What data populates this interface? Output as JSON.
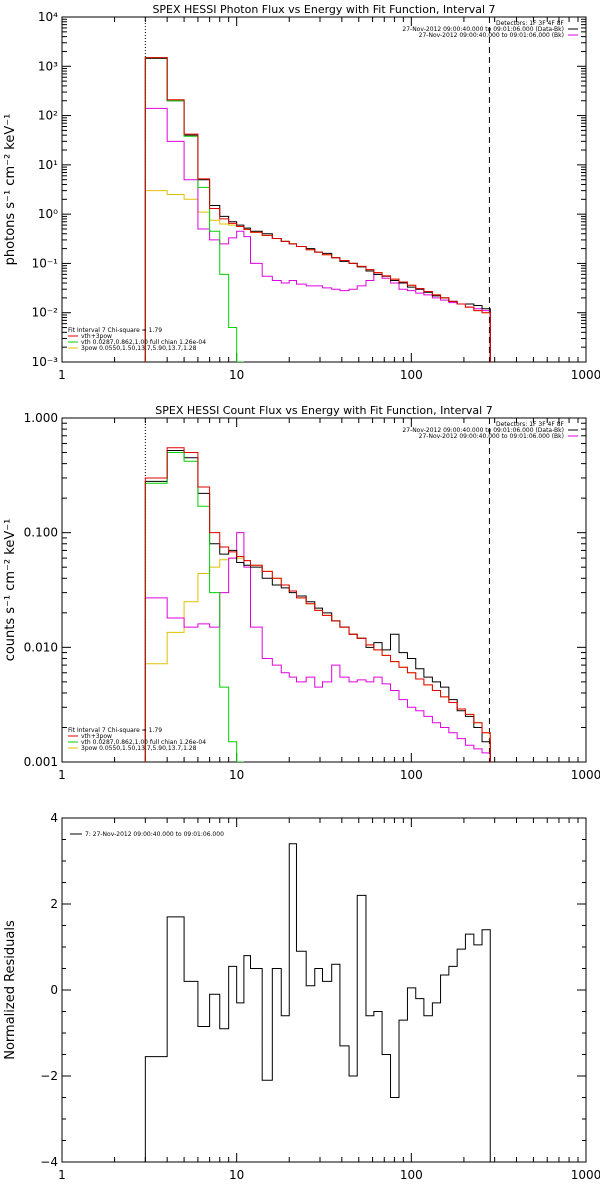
{
  "colors": {
    "black": "#000000",
    "red": "#e00000",
    "green": "#00d000",
    "magenta": "#e000e0",
    "orange": "#e0c000"
  },
  "chart_data": [
    {
      "type": "line",
      "title": "SPEX HESSI Photon Flux vs Energy with Fit Function, Interval 7",
      "xlabel": "",
      "ylabel": "photons s⁻¹ cm⁻² keV⁻¹",
      "xscale": "log",
      "yscale": "log",
      "xlim": [
        1,
        1000
      ],
      "ylim": [
        0.001,
        10000
      ],
      "x_ticks": [
        1,
        10,
        100,
        1000
      ],
      "x_tick_labels": [
        "1",
        "10",
        "100",
        "1000"
      ],
      "y_ticks": [
        0.001,
        0.01,
        0.1,
        1,
        10,
        100,
        1000,
        10000
      ],
      "y_tick_labels": [
        "10⁻³",
        "10⁻²",
        "10⁻¹",
        "10⁰",
        "10¹",
        "10²",
        "10³",
        "10⁴"
      ],
      "vlines": [
        {
          "x": 3,
          "style": "dotted"
        },
        {
          "x": 280,
          "style": "dashed"
        }
      ],
      "legend_top_right": [
        {
          "text": "Detectors: 1F 3F 4F 8F",
          "color": "#000000"
        },
        {
          "text": "27-Nov-2012 09:00:40.000 to 09:01:06.000 (Data-Bk)",
          "color": "#000000"
        },
        {
          "text": "27-Nov-2012 09:00:40.000 to 09:01:06.000 (Bk)",
          "color": "#e000e0"
        }
      ],
      "legend_bottom_left": [
        {
          "text": "Fit Interval  7    Chi-square = 1.79",
          "color": "#000000"
        },
        {
          "text": "vth+3pow",
          "color": "#e00000"
        },
        {
          "text": "vth 0.0287,0.862,1.00  full chian 1.26e-04",
          "color": "#00d000"
        },
        {
          "text": "3pow 0.0550,1.50,13.7,5.90,13.7,1.28",
          "color": "#e0c000"
        }
      ],
      "edges": [
        3,
        4,
        5,
        6,
        7,
        8,
        9,
        10,
        11,
        12,
        14,
        16,
        18,
        20,
        22,
        25,
        28,
        31,
        35,
        39,
        44,
        49,
        55,
        61,
        68,
        76,
        85,
        95,
        106,
        118,
        132,
        147,
        164,
        183,
        204,
        228,
        254,
        283
      ],
      "series": [
        {
          "name": "Data-Bk",
          "color": "#000000",
          "values": [
            1450,
            200,
            40,
            5,
            1.5,
            0.9,
            0.7,
            0.6,
            0.52,
            0.45,
            0.4,
            0.32,
            0.28,
            0.25,
            0.22,
            0.2,
            0.17,
            0.16,
            0.13,
            0.11,
            0.1,
            0.085,
            0.07,
            0.06,
            0.055,
            0.045,
            0.04,
            0.033,
            0.03,
            0.026,
            0.022,
            0.02,
            0.017,
            0.015,
            0.015,
            0.014,
            0.012
          ]
        },
        {
          "name": "Bk",
          "color": "#e000e0",
          "values": [
            140,
            30,
            5,
            0.5,
            0.3,
            0.25,
            0.33,
            0.45,
            0.35,
            0.1,
            0.055,
            0.045,
            0.04,
            0.045,
            0.038,
            0.035,
            0.035,
            0.032,
            0.03,
            0.028,
            0.03,
            0.035,
            0.045,
            0.06,
            0.05,
            0.04,
            0.03,
            0.028,
            0.025,
            0.023,
            0.02,
            0.018,
            0.016,
            0.015,
            0.013,
            0.012,
            0.011
          ]
        },
        {
          "name": "vth+3pow",
          "color": "#e00000",
          "values": [
            1500,
            210,
            42,
            5.2,
            1.3,
            0.8,
            0.65,
            0.56,
            0.49,
            0.43,
            0.37,
            0.32,
            0.28,
            0.25,
            0.22,
            0.19,
            0.17,
            0.15,
            0.13,
            0.115,
            0.1,
            0.087,
            0.075,
            0.065,
            0.056,
            0.048,
            0.042,
            0.036,
            0.031,
            0.027,
            0.023,
            0.02,
            0.017,
            0.015,
            0.013,
            0.011,
            0.01
          ]
        },
        {
          "name": "vth",
          "color": "#00d000",
          "values": [
            1500,
            200,
            38,
            3.5,
            0.45,
            0.06,
            0.005,
            0.0006
          ]
        },
        {
          "name": "3pow",
          "color": "#e0c000",
          "values": [
            3,
            2.5,
            2,
            1.1,
            0.75,
            0.63,
            0.6,
            0.56,
            0.49,
            0.43,
            0.37,
            0.32,
            0.28,
            0.25,
            0.22,
            0.19,
            0.17,
            0.15,
            0.13,
            0.115,
            0.1,
            0.087,
            0.075,
            0.065,
            0.056,
            0.048,
            0.042,
            0.036,
            0.031,
            0.027,
            0.023,
            0.02,
            0.017,
            0.015,
            0.013,
            0.011,
            0.01
          ]
        }
      ]
    },
    {
      "type": "line",
      "title": "SPEX HESSI Count Flux vs Energy with Fit Function, Interval 7",
      "xlabel": "",
      "ylabel": "counts s⁻¹ cm⁻² keV⁻¹",
      "xscale": "log",
      "yscale": "log",
      "xlim": [
        1,
        1000
      ],
      "ylim": [
        0.001,
        1
      ],
      "x_ticks": [
        1,
        10,
        100,
        1000
      ],
      "x_tick_labels": [
        "1",
        "10",
        "100",
        "1000"
      ],
      "y_ticks": [
        0.001,
        0.01,
        0.1,
        1
      ],
      "y_tick_labels": [
        "0.001",
        "0.010",
        "0.100",
        "1.000"
      ],
      "vlines": [
        {
          "x": 3,
          "style": "dotted"
        },
        {
          "x": 280,
          "style": "dashed"
        }
      ],
      "legend_top_right": [
        {
          "text": "Detectors: 1F 3F 4F 8F",
          "color": "#000000"
        },
        {
          "text": "27-Nov-2012 09:00:40.000 to 09:01:06.000 (Data-Bk)",
          "color": "#000000"
        },
        {
          "text": "27-Nov-2012 09:00:40.000 to 09:01:06.000 (Bk)",
          "color": "#e000e0"
        }
      ],
      "legend_bottom_left": [
        {
          "text": "Fit Interval  7    Chi-square = 1.79",
          "color": "#000000"
        },
        {
          "text": "vth+3pow",
          "color": "#e00000"
        },
        {
          "text": "vth 0.0287,0.862,1.00  full chian 1.26e-04",
          "color": "#00d000"
        },
        {
          "text": "3pow 0.0550,1.50,13.7,5.90,13.7,1.28",
          "color": "#e0c000"
        }
      ],
      "edges": [
        3,
        4,
        5,
        6,
        7,
        8,
        9,
        10,
        11,
        12,
        14,
        16,
        18,
        20,
        22,
        25,
        28,
        31,
        35,
        39,
        44,
        49,
        55,
        61,
        68,
        76,
        85,
        95,
        106,
        118,
        132,
        147,
        164,
        183,
        204,
        228,
        254,
        283
      ],
      "series": [
        {
          "name": "Data-Bk",
          "color": "#000000",
          "values": [
            0.28,
            0.52,
            0.45,
            0.22,
            0.08,
            0.065,
            0.07,
            0.055,
            0.052,
            0.05,
            0.04,
            0.035,
            0.033,
            0.03,
            0.028,
            0.025,
            0.022,
            0.02,
            0.017,
            0.015,
            0.013,
            0.012,
            0.01,
            0.011,
            0.0095,
            0.013,
            0.009,
            0.008,
            0.0065,
            0.0055,
            0.005,
            0.0045,
            0.0035,
            0.0028,
            0.0025,
            0.002,
            0.0015
          ]
        },
        {
          "name": "Bk",
          "color": "#e000e0",
          "values": [
            0.027,
            0.018,
            0.015,
            0.016,
            0.015,
            0.03,
            0.06,
            0.1,
            0.05,
            0.015,
            0.008,
            0.007,
            0.006,
            0.0055,
            0.005,
            0.0055,
            0.0045,
            0.005,
            0.007,
            0.0055,
            0.005,
            0.0052,
            0.005,
            0.0055,
            0.0048,
            0.0042,
            0.0035,
            0.003,
            0.0028,
            0.0025,
            0.0022,
            0.002,
            0.0018,
            0.0016,
            0.0014,
            0.0013,
            0.0012
          ]
        },
        {
          "name": "vth+3pow",
          "color": "#e00000",
          "values": [
            0.3,
            0.55,
            0.5,
            0.25,
            0.1,
            0.075,
            0.068,
            0.062,
            0.057,
            0.052,
            0.046,
            0.04,
            0.035,
            0.031,
            0.027,
            0.024,
            0.021,
            0.019,
            0.017,
            0.015,
            0.013,
            0.012,
            0.0105,
            0.0095,
            0.0085,
            0.0075,
            0.0067,
            0.006,
            0.0053,
            0.0047,
            0.0042,
            0.0037,
            0.0033,
            0.0029,
            0.0026,
            0.0022,
            0.0018
          ]
        },
        {
          "name": "vth",
          "color": "#00d000",
          "values": [
            0.27,
            0.5,
            0.42,
            0.17,
            0.03,
            0.0045,
            0.0015,
            0.0006
          ]
        },
        {
          "name": "3pow",
          "color": "#e0c000",
          "values": [
            0.0072,
            0.0135,
            0.025,
            0.044,
            0.05,
            0.058,
            0.06,
            0.06,
            0.057,
            0.052,
            0.046,
            0.04,
            0.035,
            0.031,
            0.027,
            0.024,
            0.021,
            0.019,
            0.017,
            0.015,
            0.013,
            0.012,
            0.0105,
            0.0095,
            0.0085,
            0.0075,
            0.0067,
            0.006,
            0.0053,
            0.0047,
            0.0042,
            0.0037,
            0.0033,
            0.0029,
            0.0026,
            0.0022,
            0.0018
          ]
        }
      ]
    },
    {
      "type": "line",
      "title": "",
      "xlabel": "",
      "ylabel": "Normalized Residuals",
      "xscale": "log",
      "yscale": "linear",
      "xlim": [
        1,
        1000
      ],
      "ylim": [
        -4,
        4
      ],
      "x_ticks": [
        1,
        10,
        100,
        1000
      ],
      "x_tick_labels": [
        "1",
        "10",
        "100",
        "1000"
      ],
      "y_ticks": [
        -4,
        -2,
        0,
        2,
        4
      ],
      "y_tick_labels": [
        "−4",
        "−2",
        "0",
        "2",
        "4"
      ],
      "legend_top_left": [
        {
          "text": "7: 27-Nov-2012 09:00:40.000 to 09:01:06.000",
          "color": "#000000"
        }
      ],
      "edges": [
        3,
        4,
        5,
        6,
        7,
        8,
        9,
        10,
        11,
        12,
        14,
        16,
        18,
        20,
        22,
        25,
        28,
        31,
        35,
        39,
        44,
        49,
        55,
        61,
        68,
        76,
        85,
        95,
        106,
        118,
        132,
        147,
        164,
        183,
        204,
        228,
        254,
        283
      ],
      "series": [
        {
          "name": "7: 27-Nov-2012 09:00:40.000 to 09:01:06.000",
          "color": "#000000",
          "values": [
            -1.55,
            1.7,
            0.2,
            -0.85,
            -0.1,
            -0.9,
            0.55,
            -0.3,
            0.8,
            0.5,
            -2.1,
            0.5,
            -0.6,
            3.4,
            0.9,
            0.1,
            0.5,
            0.2,
            0.6,
            -1.3,
            -2.0,
            2.2,
            -0.6,
            -0.5,
            -1.5,
            -2.5,
            -0.7,
            0.05,
            -0.2,
            -0.6,
            -0.3,
            0.35,
            0.55,
            0.95,
            1.3,
            1.05,
            1.4
          ]
        }
      ]
    }
  ]
}
